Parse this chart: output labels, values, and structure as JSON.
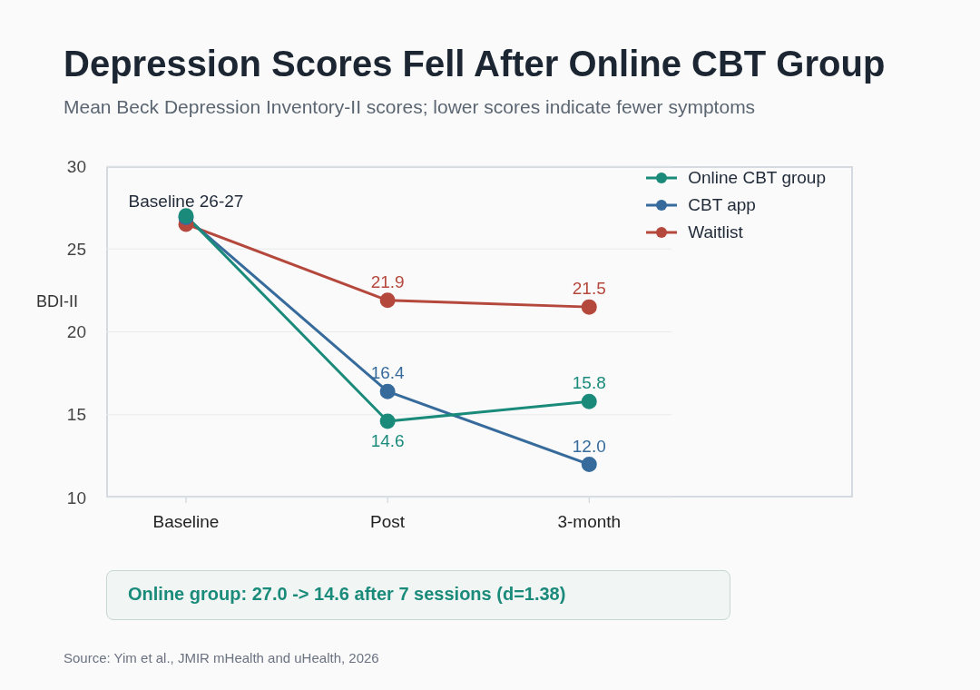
{
  "chart_data": {
    "type": "line",
    "title": "Depression Scores Fell After Online CBT Group",
    "subtitle": "Mean Beck Depression Inventory-II scores; lower scores indicate fewer symptoms",
    "ylabel": "BDI-II",
    "categories": [
      "Baseline",
      "Post",
      "3-month"
    ],
    "series": [
      {
        "name": "Online CBT group",
        "color": "#1a8a7a",
        "values": [
          27.0,
          14.6,
          15.8
        ],
        "value_labels": [
          null,
          "14.6",
          "15.8"
        ]
      },
      {
        "name": "CBT app",
        "color": "#366b9c",
        "values": [
          26.9,
          16.4,
          12.0
        ],
        "value_labels": [
          null,
          "16.4",
          "12.0"
        ]
      },
      {
        "name": "Waitlist",
        "color": "#b5483c",
        "values": [
          26.5,
          21.9,
          21.5
        ],
        "value_labels": [
          null,
          "21.9",
          "21.5"
        ]
      }
    ],
    "ylim": [
      10,
      30
    ],
    "yticks": [
      10,
      15,
      20,
      25,
      30
    ],
    "grid": "y",
    "legend": "top right",
    "marker": "circle",
    "line_style": "solid",
    "annotations": [
      {
        "text": "Baseline 26-27",
        "x": "Baseline",
        "y": 27
      },
      "Online group: 27.0 -> 14.6 after 7 sessions (d=1.38)",
      "Source: Yim et al., JMIR mHealth and uHealth, 2026"
    ]
  }
}
